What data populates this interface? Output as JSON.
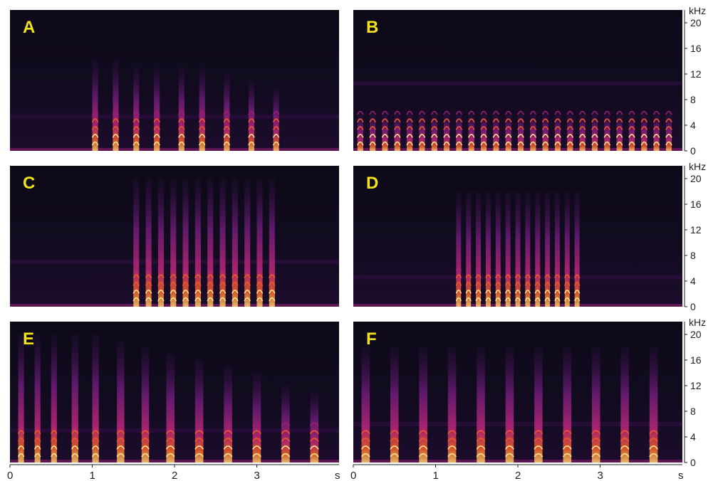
{
  "chart_data": {
    "type": "heatmap",
    "panels": [
      {
        "label": "A",
        "calls": [
          [
            1.0,
            0.07,
            14
          ],
          [
            1.25,
            0.07,
            14
          ],
          [
            1.5,
            0.07,
            13
          ],
          [
            1.75,
            0.07,
            13
          ],
          [
            2.05,
            0.07,
            13
          ],
          [
            2.3,
            0.07,
            13
          ],
          [
            2.6,
            0.07,
            12
          ],
          [
            2.9,
            0.07,
            11
          ],
          [
            3.2,
            0.07,
            10
          ]
        ],
        "bands": [
          5.3
        ]
      },
      {
        "label": "B",
        "calls": [
          [
            0.05,
            0.07,
            6
          ],
          [
            0.2,
            0.07,
            6
          ],
          [
            0.35,
            0.07,
            6
          ],
          [
            0.5,
            0.07,
            6
          ],
          [
            0.65,
            0.07,
            6
          ],
          [
            0.8,
            0.07,
            6
          ],
          [
            0.95,
            0.07,
            6
          ],
          [
            1.1,
            0.07,
            6
          ],
          [
            1.25,
            0.07,
            6
          ],
          [
            1.4,
            0.07,
            6
          ],
          [
            1.55,
            0.07,
            6
          ],
          [
            1.7,
            0.07,
            6
          ],
          [
            1.85,
            0.07,
            6
          ],
          [
            2.0,
            0.07,
            6
          ],
          [
            2.15,
            0.07,
            6
          ],
          [
            2.3,
            0.07,
            6
          ],
          [
            2.45,
            0.07,
            6
          ],
          [
            2.6,
            0.07,
            6
          ],
          [
            2.75,
            0.07,
            6
          ],
          [
            2.9,
            0.07,
            6
          ],
          [
            3.05,
            0.07,
            6
          ],
          [
            3.2,
            0.07,
            6
          ],
          [
            3.35,
            0.07,
            6
          ],
          [
            3.5,
            0.07,
            6
          ],
          [
            3.65,
            0.07,
            6
          ],
          [
            3.8,
            0.07,
            6
          ]
        ],
        "bands": [
          10.5
        ]
      },
      {
        "label": "C",
        "calls": [
          [
            1.5,
            0.07,
            20
          ],
          [
            1.65,
            0.07,
            20
          ],
          [
            1.8,
            0.07,
            20
          ],
          [
            1.95,
            0.07,
            20
          ],
          [
            2.1,
            0.07,
            20
          ],
          [
            2.25,
            0.07,
            20
          ],
          [
            2.4,
            0.07,
            20
          ],
          [
            2.55,
            0.07,
            20
          ],
          [
            2.7,
            0.07,
            20
          ],
          [
            2.85,
            0.07,
            20
          ],
          [
            3.0,
            0.07,
            20
          ],
          [
            3.15,
            0.07,
            20
          ]
        ],
        "bands": [
          7.0
        ]
      },
      {
        "label": "D",
        "calls": [
          [
            1.25,
            0.06,
            18
          ],
          [
            1.37,
            0.06,
            18
          ],
          [
            1.49,
            0.06,
            18
          ],
          [
            1.61,
            0.06,
            18
          ],
          [
            1.73,
            0.06,
            18
          ],
          [
            1.85,
            0.06,
            18
          ],
          [
            1.97,
            0.06,
            18
          ],
          [
            2.09,
            0.06,
            18
          ],
          [
            2.21,
            0.06,
            18
          ],
          [
            2.33,
            0.06,
            18
          ],
          [
            2.45,
            0.06,
            18
          ],
          [
            2.57,
            0.06,
            18
          ],
          [
            2.69,
            0.06,
            18
          ]
        ],
        "bands": [
          4.6
        ]
      },
      {
        "label": "E",
        "calls": [
          [
            0.1,
            0.07,
            20
          ],
          [
            0.3,
            0.07,
            20
          ],
          [
            0.5,
            0.07,
            20
          ],
          [
            0.75,
            0.08,
            20
          ],
          [
            1.0,
            0.08,
            20
          ],
          [
            1.3,
            0.09,
            19
          ],
          [
            1.6,
            0.09,
            18
          ],
          [
            1.9,
            0.1,
            17
          ],
          [
            2.25,
            0.1,
            16
          ],
          [
            2.6,
            0.1,
            15
          ],
          [
            2.95,
            0.1,
            14
          ],
          [
            3.3,
            0.1,
            12
          ],
          [
            3.65,
            0.1,
            11
          ]
        ],
        "bands": [
          5.0
        ]
      },
      {
        "label": "F",
        "calls": [
          [
            0.1,
            0.1,
            18
          ],
          [
            0.45,
            0.1,
            18
          ],
          [
            0.8,
            0.1,
            18
          ],
          [
            1.15,
            0.1,
            18
          ],
          [
            1.5,
            0.1,
            18
          ],
          [
            1.85,
            0.1,
            18
          ],
          [
            2.2,
            0.1,
            18
          ],
          [
            2.55,
            0.1,
            18
          ],
          [
            2.9,
            0.1,
            18
          ],
          [
            3.25,
            0.1,
            18
          ],
          [
            3.6,
            0.1,
            18
          ]
        ],
        "bands": [
          6.0
        ]
      }
    ],
    "xlabel": "s",
    "ylabel": "kHz",
    "xlim": [
      0,
      4
    ],
    "ylim": [
      0,
      22
    ],
    "xticks": [
      "0",
      "1",
      "2",
      "3"
    ],
    "yticks": [
      "0",
      "4",
      "8",
      "12",
      "16",
      "20"
    ],
    "grid": false
  },
  "colors": {
    "background": "#0b0a14",
    "low": "#3a0f4d",
    "mid": "#9c1f7a",
    "high": "#f05a2a",
    "peak": "#ffe28a",
    "panel_label": "#f1e21a"
  }
}
